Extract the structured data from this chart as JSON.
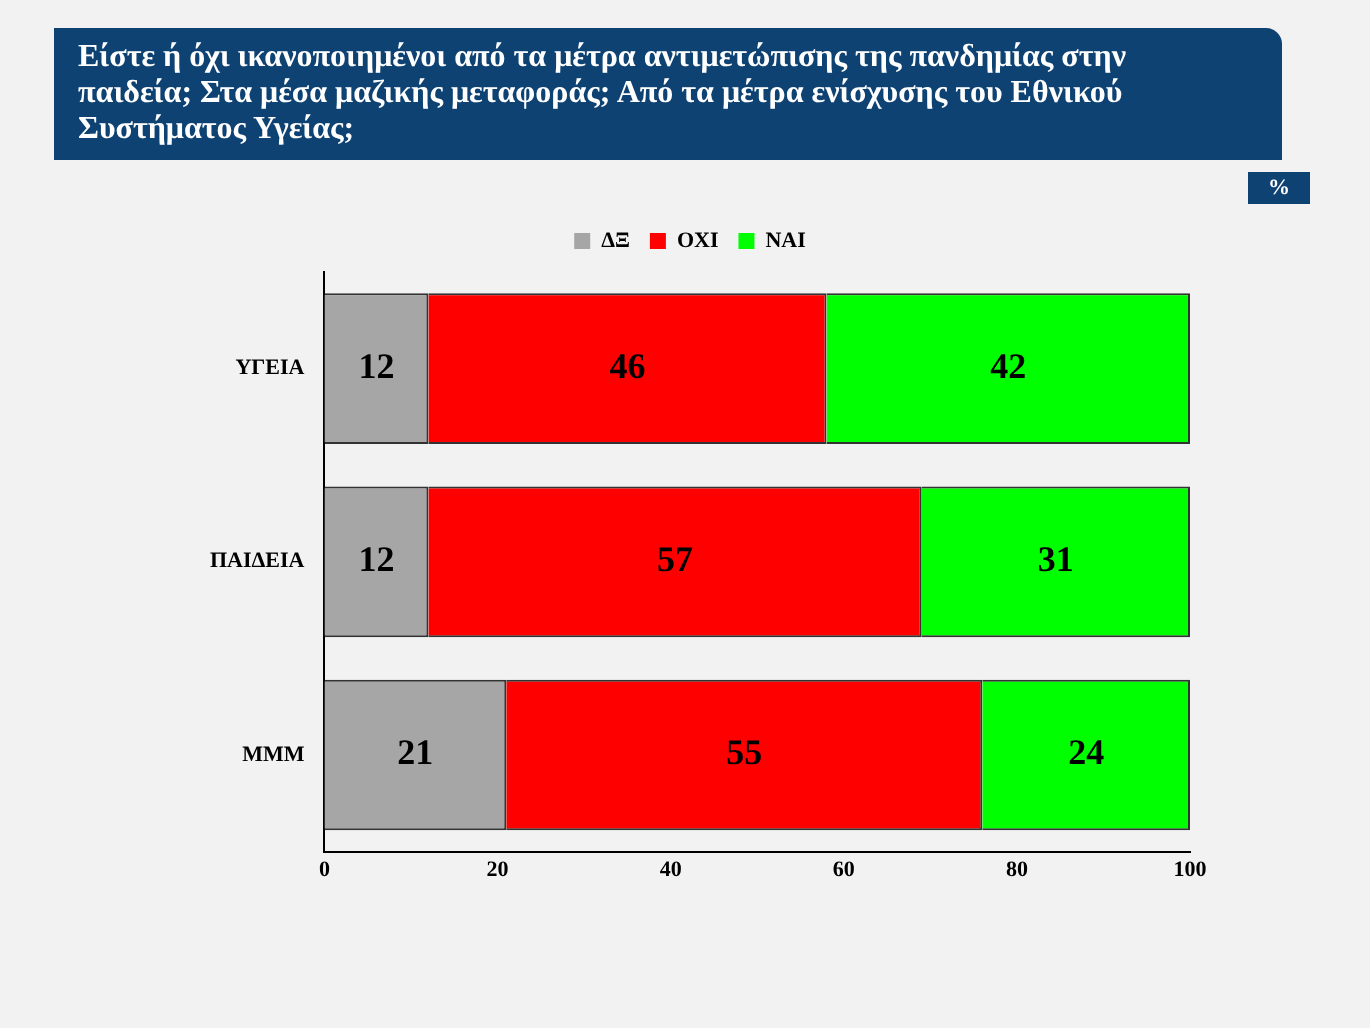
{
  "chart_data": {
    "type": "bar",
    "orientation": "horizontal",
    "stacked": true,
    "title": "Είστε ή όχι ικανοποιημένοι από τα μέτρα αντιμετώπισης της πανδημίας στην παιδεία; Στα μέσα μαζικής μεταφοράς; Από τα μέτρα ενίσχυσης του Εθνικού Συστήματος Υγείας;",
    "annotations": [
      "%"
    ],
    "categories": [
      "ΥΓΕΙΑ",
      "ΠΑΙΔΕΙΑ",
      "ΜΜΜ"
    ],
    "series": [
      {
        "name": "ΔΞ",
        "color": "#a6a6a6",
        "values": [
          12,
          12,
          21
        ]
      },
      {
        "name": "ΟΧΙ",
        "color": "#ff0000",
        "values": [
          46,
          57,
          55
        ]
      },
      {
        "name": "ΝΑΙ",
        "color": "#00ff00",
        "values": [
          42,
          31,
          24
        ]
      }
    ],
    "xlim": [
      0,
      100
    ],
    "xticks": [
      0,
      20,
      40,
      60,
      80,
      100
    ],
    "grid": false,
    "legend": "top",
    "data_labels": true
  }
}
